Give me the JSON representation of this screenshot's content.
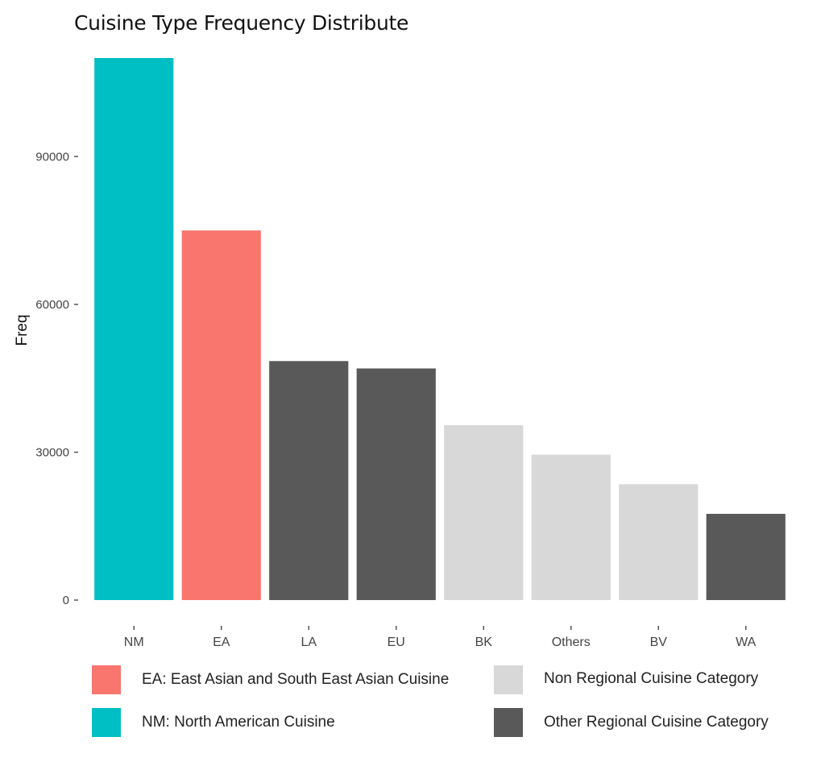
{
  "chart_data": {
    "type": "bar",
    "title": "Cuisine Type Frequency Distribute",
    "xlabel": "",
    "ylabel": "Freq",
    "ylim": [
      0,
      110000
    ],
    "yticks": [
      0,
      30000,
      60000,
      90000
    ],
    "ytick_labels": [
      "0",
      "30000",
      "60000",
      "90000"
    ],
    "grid": false,
    "categories": [
      "NM",
      "EA",
      "LA",
      "EU",
      "BK",
      "Others",
      "BV",
      "WA"
    ],
    "values": [
      110000,
      75000,
      48500,
      47000,
      35500,
      29500,
      23500,
      17500
    ],
    "bar_groups": [
      "nm",
      "ea",
      "regional",
      "regional",
      "nonregional",
      "nonregional",
      "nonregional",
      "regional"
    ],
    "group_colors": {
      "nm": "#00BFC4",
      "ea": "#F8766D",
      "regional": "#595959",
      "nonregional": "#D9D8D8"
    },
    "legend": {
      "position": "bottom",
      "items": [
        {
          "label": "EA:  East Asian and South East Asian Cuisine",
          "group": "ea"
        },
        {
          "label": "NM: North American Cuisine",
          "group": "nm"
        },
        {
          "label": "Non Regional Cuisine Category",
          "group": "nonregional"
        },
        {
          "label": "Other Regional Cuisine Category",
          "group": "regional"
        }
      ]
    }
  }
}
